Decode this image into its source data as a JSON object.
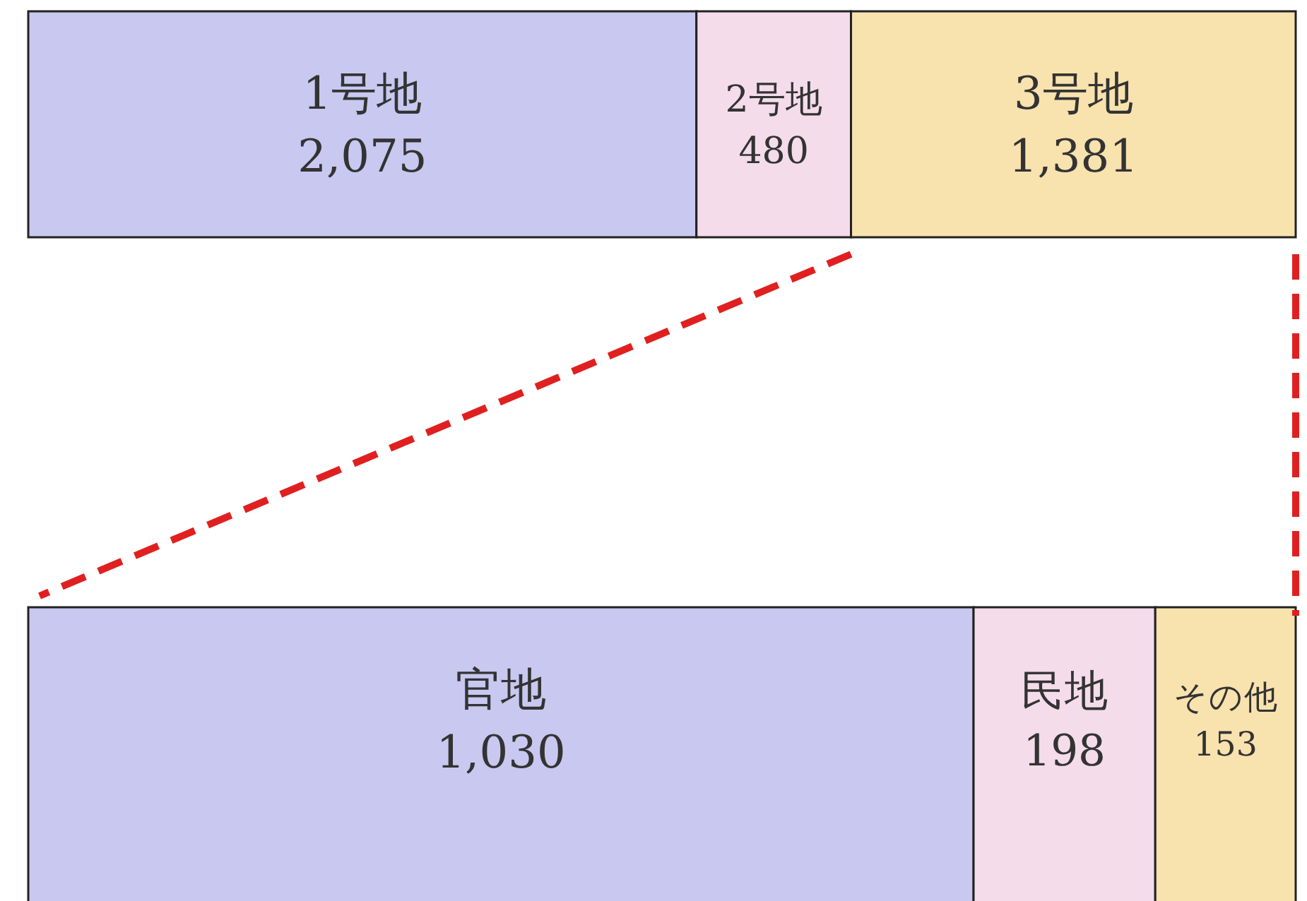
{
  "chart_data": [
    {
      "type": "bar",
      "orientation": "horizontal",
      "stacked": true,
      "categories": [
        null
      ],
      "series": [
        {
          "name": "1号地",
          "color": "#c8c8f0",
          "values": [
            2075
          ],
          "value_labels": [
            "2,075"
          ]
        },
        {
          "name": "2号地",
          "color": "#f4dcea",
          "values": [
            480
          ],
          "value_labels": [
            "480"
          ]
        },
        {
          "name": "3号地",
          "color": "#f8e2ae",
          "values": [
            1381
          ],
          "value_labels": [
            "1,381"
          ]
        }
      ]
    },
    {
      "type": "bar",
      "orientation": "horizontal",
      "stacked": true,
      "categories": [
        null
      ],
      "series": [
        {
          "name": "官地",
          "color": "#c8c8f0",
          "values": [
            1030
          ],
          "value_labels": [
            "1,030"
          ]
        },
        {
          "name": "民地",
          "color": "#f4dcea",
          "values": [
            198
          ],
          "value_labels": [
            "198"
          ]
        },
        {
          "name": "その他",
          "color": "#f8e2ae",
          "values": [
            153
          ],
          "value_labels": [
            "153"
          ]
        }
      ]
    }
  ]
}
